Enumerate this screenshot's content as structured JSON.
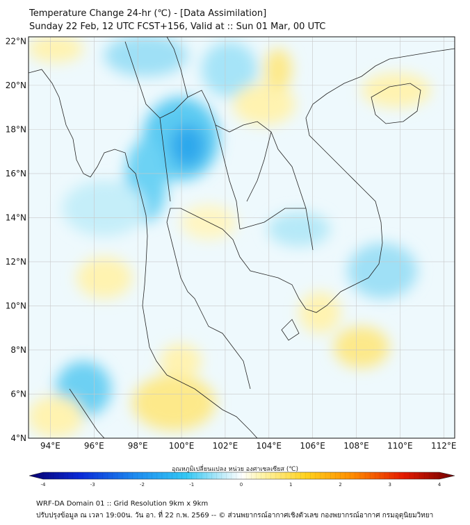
{
  "title": {
    "line1": "Temperature Change 24-hr (℃) - [Data Assimilation]",
    "line2": "Sunday 22 Feb, 12 UTC FCST+156, Valid at :: Sun 01 Mar, 00 UTC"
  },
  "map": {
    "lon_range": [
      93,
      112.5
    ],
    "lat_range": [
      4,
      22.2
    ],
    "lon_ticks": [
      "94°E",
      "96°E",
      "98°E",
      "100°E",
      "102°E",
      "104°E",
      "106°E",
      "108°E",
      "110°E",
      "112°E"
    ],
    "lat_ticks": [
      "22°N",
      "20°N",
      "18°N",
      "16°N",
      "14°N",
      "12°N",
      "10°N",
      "8°N",
      "6°N",
      "4°N"
    ],
    "grid": true
  },
  "colorbar": {
    "title": "อุณหภูมิเปลี่ยนแปลง หน่วย องศาเซลเซียส (℃)",
    "ticks": [
      "-4",
      "-3",
      "-2",
      "-1",
      "0",
      "1",
      "2",
      "3",
      "4"
    ],
    "range": [
      -4,
      4
    ],
    "colors": [
      "#08006e",
      "#0a2ad8",
      "#1e8cf0",
      "#34c8f4",
      "#c8eefa",
      "#ffffff",
      "#fff6b4",
      "#ffd21e",
      "#ff8c00",
      "#e41a00",
      "#700000"
    ]
  },
  "footer": {
    "line1": "WRF-DA Domain 01 :: Grid Resolution 9km x 9km",
    "line2": "ปรับปรุงข้อมูล ณ เวลา 19:00น. วัน อา. ที่ 22 ก.พ. 2569 -- © ส่วนพยากรณ์อากาศเชิงตัวเลข กองพยากรณ์อากาศ กรมอุตุนิยมวิทยา"
  }
}
